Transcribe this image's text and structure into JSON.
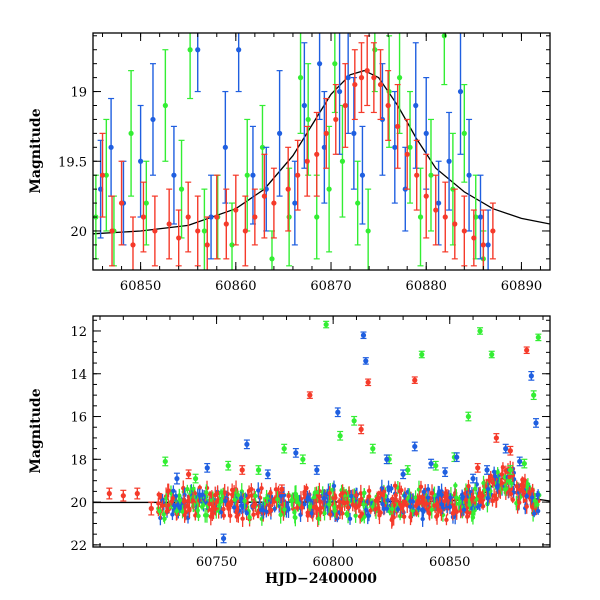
{
  "colors": {
    "green": "#33ee33",
    "blue": "#1f5fe0",
    "red": "#f53a2a",
    "model": "#000000"
  },
  "chart_data": [
    {
      "type": "scatter",
      "title": "",
      "xlabel": "",
      "ylabel": "Magnitude",
      "xlim": [
        60845,
        60893
      ],
      "ylim": [
        20.28,
        18.58
      ],
      "y_inverted": true,
      "grid": false,
      "legend": "none",
      "xticks": [
        60850,
        60860,
        60870,
        60880,
        60890
      ],
      "xtick_labels": [
        "60850",
        "60860",
        "60870",
        "60880",
        "60890"
      ],
      "yticks": [
        19,
        19.5,
        20
      ],
      "ytick_labels": [
        "19",
        "19.5",
        "20"
      ],
      "model_curve": {
        "x": [
          60845,
          60850,
          60855,
          60860,
          60863,
          60866,
          60868,
          60870,
          60872,
          60873.5,
          60875,
          60877,
          60879,
          60881,
          60884,
          60887,
          60890,
          60893
        ],
        "y": [
          20.02,
          20.0,
          19.96,
          19.84,
          19.7,
          19.46,
          19.24,
          19.02,
          18.88,
          18.85,
          18.9,
          19.1,
          19.34,
          19.55,
          19.72,
          19.84,
          19.91,
          19.95
        ]
      },
      "series": [
        {
          "color": "green",
          "x": [
            60845.3,
            60846.4,
            60847.2,
            60849.0,
            60850.6,
            60852.6,
            60854.3,
            60855.2,
            60856.7,
            60858.1,
            60859.6,
            60861.2,
            60862.8,
            60863.8,
            60865.6,
            60866.8,
            60867.6,
            60868.5,
            60869.8,
            60870.4,
            60871.2,
            60872.8,
            60873.9,
            60874.6,
            60876.1,
            60877.2,
            60878.3,
            60879.4,
            60880.5,
            60881.9,
            60882.8,
            60884.0,
            60885.2,
            60886.0
          ],
          "y": [
            19.9,
            19.6,
            20.0,
            19.3,
            19.8,
            19.1,
            19.7,
            18.7,
            20.0,
            19.9,
            20.1,
            19.6,
            19.4,
            20.2,
            19.9,
            18.9,
            19.2,
            19.9,
            19.7,
            18.8,
            19.5,
            19.8,
            20.0,
            18.7,
            19.0,
            18.9,
            19.4,
            19.9,
            19.6,
            18.6,
            19.7,
            19.3,
            19.9,
            20.2
          ],
          "err": [
            0.3,
            0.4,
            0.25,
            0.45,
            0.3,
            0.4,
            0.35,
            0.35,
            0.3,
            0.3,
            0.3,
            0.4,
            0.3,
            0.2,
            0.35,
            0.4,
            0.4,
            0.3,
            0.45,
            0.35,
            0.4,
            0.3,
            0.3,
            0.3,
            0.4,
            0.4,
            0.4,
            0.35,
            0.4,
            0.35,
            0.4,
            0.35,
            0.3,
            0.2
          ]
        },
        {
          "color": "blue",
          "x": [
            60845.8,
            60846.9,
            60848.2,
            60850.0,
            60851.3,
            60853.5,
            60856.0,
            60857.4,
            60858.9,
            60860.3,
            60861.8,
            60863.2,
            60864.6,
            60866.2,
            60867.2,
            60868.8,
            60869.3,
            60870.9,
            60871.8,
            60872.4,
            60873.3,
            60875.4,
            60876.7,
            60877.8,
            60878.9,
            60880.0,
            60881.3,
            60882.4,
            60883.6,
            60884.5,
            60885.7,
            60886.5
          ],
          "y": [
            19.7,
            19.4,
            19.8,
            19.5,
            19.2,
            19.6,
            18.7,
            19.9,
            19.4,
            18.7,
            19.6,
            19.7,
            19.3,
            19.8,
            19.1,
            18.8,
            19.4,
            19.0,
            18.9,
            19.3,
            19.6,
            19.2,
            19.4,
            19.7,
            19.1,
            19.3,
            19.8,
            19.5,
            19.0,
            19.6,
            19.9,
            20.1
          ],
          "err": [
            0.35,
            0.35,
            0.3,
            0.4,
            0.4,
            0.35,
            0.3,
            0.3,
            0.4,
            0.3,
            0.35,
            0.3,
            0.45,
            0.3,
            0.45,
            0.4,
            0.4,
            0.45,
            0.4,
            0.4,
            0.35,
            0.4,
            0.4,
            0.3,
            0.45,
            0.4,
            0.3,
            0.35,
            0.45,
            0.4,
            0.3,
            0.25
          ]
        },
        {
          "color": "red",
          "x": [
            60846.0,
            60847.0,
            60848.0,
            60849.2,
            60850.3,
            60851.5,
            60853.0,
            60854.0,
            60855.0,
            60856.0,
            60857.0,
            60858.0,
            60859.0,
            60860.0,
            60861.0,
            60862.0,
            60863.0,
            60864.0,
            60865.5,
            60866.5,
            60867.5,
            60868.5,
            60869.5,
            60870.5,
            60871.5,
            60872.5,
            60873.2,
            60873.8,
            60874.5,
            60875.2,
            60876.0,
            60877.0,
            60878.0,
            60879.0,
            60880.0,
            60881.0,
            60882.0,
            60883.0,
            60884.0,
            60885.0,
            60886.0,
            60887.0
          ],
          "y": [
            19.6,
            20.0,
            19.8,
            20.1,
            19.9,
            20.0,
            19.95,
            20.05,
            19.9,
            20.0,
            20.1,
            19.9,
            19.95,
            19.85,
            20.0,
            19.9,
            19.75,
            19.8,
            19.7,
            19.6,
            19.5,
            19.45,
            19.3,
            19.2,
            19.1,
            18.95,
            18.9,
            18.85,
            18.9,
            18.95,
            19.1,
            19.25,
            19.45,
            19.6,
            19.75,
            19.85,
            19.9,
            19.95,
            20.0,
            20.05,
            20.1,
            20.0
          ],
          "err": [
            0.3,
            0.25,
            0.3,
            0.2,
            0.25,
            0.25,
            0.25,
            0.2,
            0.25,
            0.25,
            0.2,
            0.3,
            0.25,
            0.25,
            0.25,
            0.2,
            0.3,
            0.25,
            0.3,
            0.25,
            0.25,
            0.3,
            0.25,
            0.25,
            0.3,
            0.25,
            0.25,
            0.25,
            0.25,
            0.25,
            0.25,
            0.3,
            0.25,
            0.25,
            0.3,
            0.25,
            0.25,
            0.25,
            0.25,
            0.2,
            0.25,
            0.2
          ]
        }
      ]
    },
    {
      "type": "scatter",
      "title": "",
      "xlabel": "HJD−2400000",
      "ylabel": "Magnitude",
      "xlim": [
        60697,
        60893
      ],
      "ylim": [
        22.1,
        11.3
      ],
      "y_inverted": true,
      "grid": false,
      "legend": "none",
      "xticks": [
        60750,
        60800,
        60850
      ],
      "xtick_labels": [
        "60750",
        "60800",
        "60850"
      ],
      "yticks": [
        12,
        14,
        16,
        18,
        20,
        22
      ],
      "ytick_labels": [
        "12",
        "14",
        "16",
        "18",
        "20",
        "22"
      ],
      "model_curve": {
        "x": [
          60697,
          60740,
          60780,
          60820,
          60850,
          60860,
          60866,
          60870,
          60873.5,
          60877,
          60881,
          60886,
          60893
        ],
        "y": [
          20.02,
          20.01,
          20.0,
          19.99,
          19.95,
          19.85,
          19.5,
          19.02,
          18.85,
          19.1,
          19.55,
          19.84,
          19.95
        ]
      },
      "series": [
        {
          "color": "green",
          "x": [
            60728,
            60741,
            60755,
            60768,
            60779,
            60787,
            60797,
            60803,
            60809,
            60817,
            60824,
            60832,
            60838,
            60844,
            60852,
            60858,
            60863,
            60868,
            60876,
            60882,
            60886,
            60888
          ],
          "y": [
            18.1,
            18.9,
            18.3,
            18.5,
            17.5,
            18.0,
            11.7,
            16.9,
            16.2,
            17.5,
            18.0,
            18.5,
            13.1,
            18.3,
            17.9,
            16.0,
            12.0,
            13.1,
            18.5,
            18.2,
            15.0,
            12.3
          ],
          "err": [
            0.2,
            0.2,
            0.2,
            0.2,
            0.2,
            0.2,
            0.15,
            0.2,
            0.2,
            0.2,
            0.2,
            0.2,
            0.15,
            0.2,
            0.2,
            0.2,
            0.15,
            0.15,
            0.2,
            0.2,
            0.2,
            0.15
          ]
        },
        {
          "color": "blue",
          "x": [
            60733,
            60746,
            60753,
            60763,
            60772,
            60784,
            60793,
            60802,
            60813,
            60814,
            60823,
            60830,
            60835,
            60842,
            60848,
            60853,
            60860,
            60866,
            60874,
            60880,
            60885,
            60887
          ],
          "y": [
            18.9,
            18.4,
            21.7,
            17.3,
            18.7,
            17.7,
            18.5,
            15.8,
            12.2,
            13.4,
            18.0,
            18.7,
            17.4,
            18.2,
            18.6,
            17.9,
            18.9,
            18.5,
            17.5,
            18.1,
            14.1,
            16.3
          ],
          "err": [
            0.25,
            0.2,
            0.2,
            0.2,
            0.2,
            0.2,
            0.2,
            0.2,
            0.15,
            0.15,
            0.2,
            0.2,
            0.2,
            0.2,
            0.2,
            0.2,
            0.2,
            0.2,
            0.2,
            0.2,
            0.2,
            0.2
          ]
        },
        {
          "color": "red",
          "x": [
            60704,
            60710,
            60716,
            60722,
            60738,
            60761,
            60778,
            60790,
            60812,
            60815,
            60835,
            60862,
            60870,
            60876,
            60883
          ],
          "y": [
            19.6,
            19.7,
            19.6,
            20.3,
            18.7,
            18.5,
            19.4,
            15.0,
            16.6,
            14.4,
            14.3,
            18.4,
            17.0,
            17.6,
            12.9
          ],
          "err": [
            0.25,
            0.25,
            0.25,
            0.3,
            0.2,
            0.2,
            0.2,
            0.15,
            0.2,
            0.15,
            0.15,
            0.2,
            0.2,
            0.2,
            0.15
          ]
        }
      ],
      "band": {
        "x_start": 60725,
        "x_end": 60889,
        "y_center": 20.05,
        "y_spread": 0.85
      }
    }
  ]
}
